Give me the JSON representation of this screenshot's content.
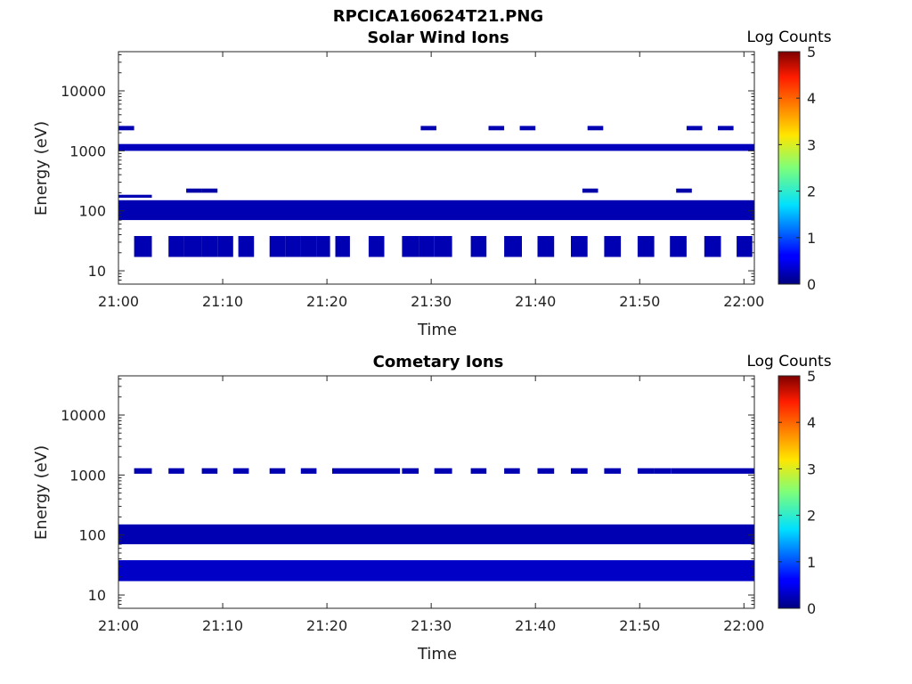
{
  "figure": {
    "title": "RPCICA160624T21.PNG"
  },
  "colorbar": {
    "label": "Log Counts",
    "ticks": [
      "0",
      "1",
      "2",
      "3",
      "4",
      "5"
    ],
    "range": [
      0,
      5
    ],
    "colormap": "jet"
  },
  "chart_data": [
    {
      "type": "heatmap",
      "title": "Solar Wind Ions",
      "xlabel": "Time",
      "ylabel": "Energy (eV)",
      "xticks": [
        "21:00",
        "21:10",
        "21:20",
        "21:30",
        "21:40",
        "21:50",
        "22:00"
      ],
      "xlim_minutes": [
        0,
        61
      ],
      "yscale": "log",
      "yticks": [
        "10",
        "100",
        "1000",
        "10000"
      ],
      "ylim": [
        6,
        45000
      ],
      "bands": [
        {
          "emin": 17,
          "emax": 38,
          "value": 0.25,
          "segments": [
            [
              1.5,
              3.2
            ],
            [
              4.8,
              6.3
            ],
            [
              6.3,
              8.0
            ],
            [
              8.0,
              9.5
            ],
            [
              9.5,
              11.0
            ],
            [
              11.5,
              13.0
            ],
            [
              14.5,
              16.0
            ],
            [
              16.0,
              17.5
            ],
            [
              17.5,
              19.0
            ],
            [
              19.0,
              20.3
            ],
            [
              20.8,
              22.2
            ],
            [
              24.0,
              25.5
            ],
            [
              27.2,
              28.8
            ],
            [
              28.8,
              30.3
            ],
            [
              30.3,
              32.0
            ],
            [
              33.8,
              35.3
            ],
            [
              37.0,
              38.7
            ],
            [
              40.2,
              41.8
            ],
            [
              43.4,
              45.0
            ],
            [
              46.6,
              48.2
            ],
            [
              49.8,
              51.4
            ],
            [
              52.9,
              54.5
            ],
            [
              56.2,
              57.8
            ],
            [
              59.3,
              60.8
            ]
          ]
        },
        {
          "emin": 70,
          "emax": 150,
          "value": 0.25,
          "segments": [
            [
              0,
              61
            ]
          ]
        },
        {
          "emin": 165,
          "emax": 185,
          "value": 0.25,
          "segments": [
            [
              0,
              3.2
            ]
          ]
        },
        {
          "emin": 200,
          "emax": 235,
          "value": 0.2,
          "segments": [
            [
              6.5,
              8.0
            ],
            [
              8.0,
              9.5
            ],
            [
              44.5,
              46.0
            ],
            [
              53.5,
              55.0
            ]
          ]
        },
        {
          "emin": 1000,
          "emax": 1300,
          "value": 0.3,
          "segments": [
            [
              0,
              61
            ]
          ]
        },
        {
          "emin": 2200,
          "emax": 2600,
          "value": 0.25,
          "segments": [
            [
              0,
              1.5
            ],
            [
              29.0,
              30.5
            ],
            [
              35.5,
              37.0
            ],
            [
              38.5,
              40.0
            ],
            [
              45.0,
              46.5
            ],
            [
              54.5,
              56.0
            ],
            [
              57.5,
              59.0
            ]
          ]
        }
      ]
    },
    {
      "type": "heatmap",
      "title": "Cometary Ions",
      "xlabel": "Time",
      "ylabel": "Energy (eV)",
      "xticks": [
        "21:00",
        "21:10",
        "21:20",
        "21:30",
        "21:40",
        "21:50",
        "22:00"
      ],
      "xlim_minutes": [
        0,
        61
      ],
      "yscale": "log",
      "yticks": [
        "10",
        "100",
        "1000",
        "10000"
      ],
      "ylim": [
        6,
        45000
      ],
      "bands": [
        {
          "emin": 17,
          "emax": 38,
          "value": 0.35,
          "segments": [
            [
              0,
              61
            ]
          ]
        },
        {
          "emin": 70,
          "emax": 150,
          "value": 0.25,
          "segments": [
            [
              0,
              61
            ]
          ]
        },
        {
          "emin": 1050,
          "emax": 1300,
          "value": 0.25,
          "segments": [
            [
              1.5,
              3.2
            ],
            [
              4.8,
              6.3
            ],
            [
              8.0,
              9.5
            ],
            [
              11.0,
              12.5
            ],
            [
              14.5,
              16.0
            ],
            [
              17.5,
              19.0
            ],
            [
              20.5,
              22.0
            ],
            [
              22.0,
              25.5
            ],
            [
              25.5,
              27.0
            ],
            [
              27.2,
              28.8
            ],
            [
              30.3,
              32.0
            ],
            [
              33.8,
              35.3
            ],
            [
              37.0,
              38.5
            ],
            [
              40.2,
              41.8
            ],
            [
              43.4,
              45.0
            ],
            [
              46.6,
              48.2
            ],
            [
              49.8,
              51.4
            ],
            [
              51.4,
              53.0
            ],
            [
              53.0,
              56.0
            ],
            [
              56.0,
              61.0
            ]
          ]
        }
      ]
    }
  ]
}
